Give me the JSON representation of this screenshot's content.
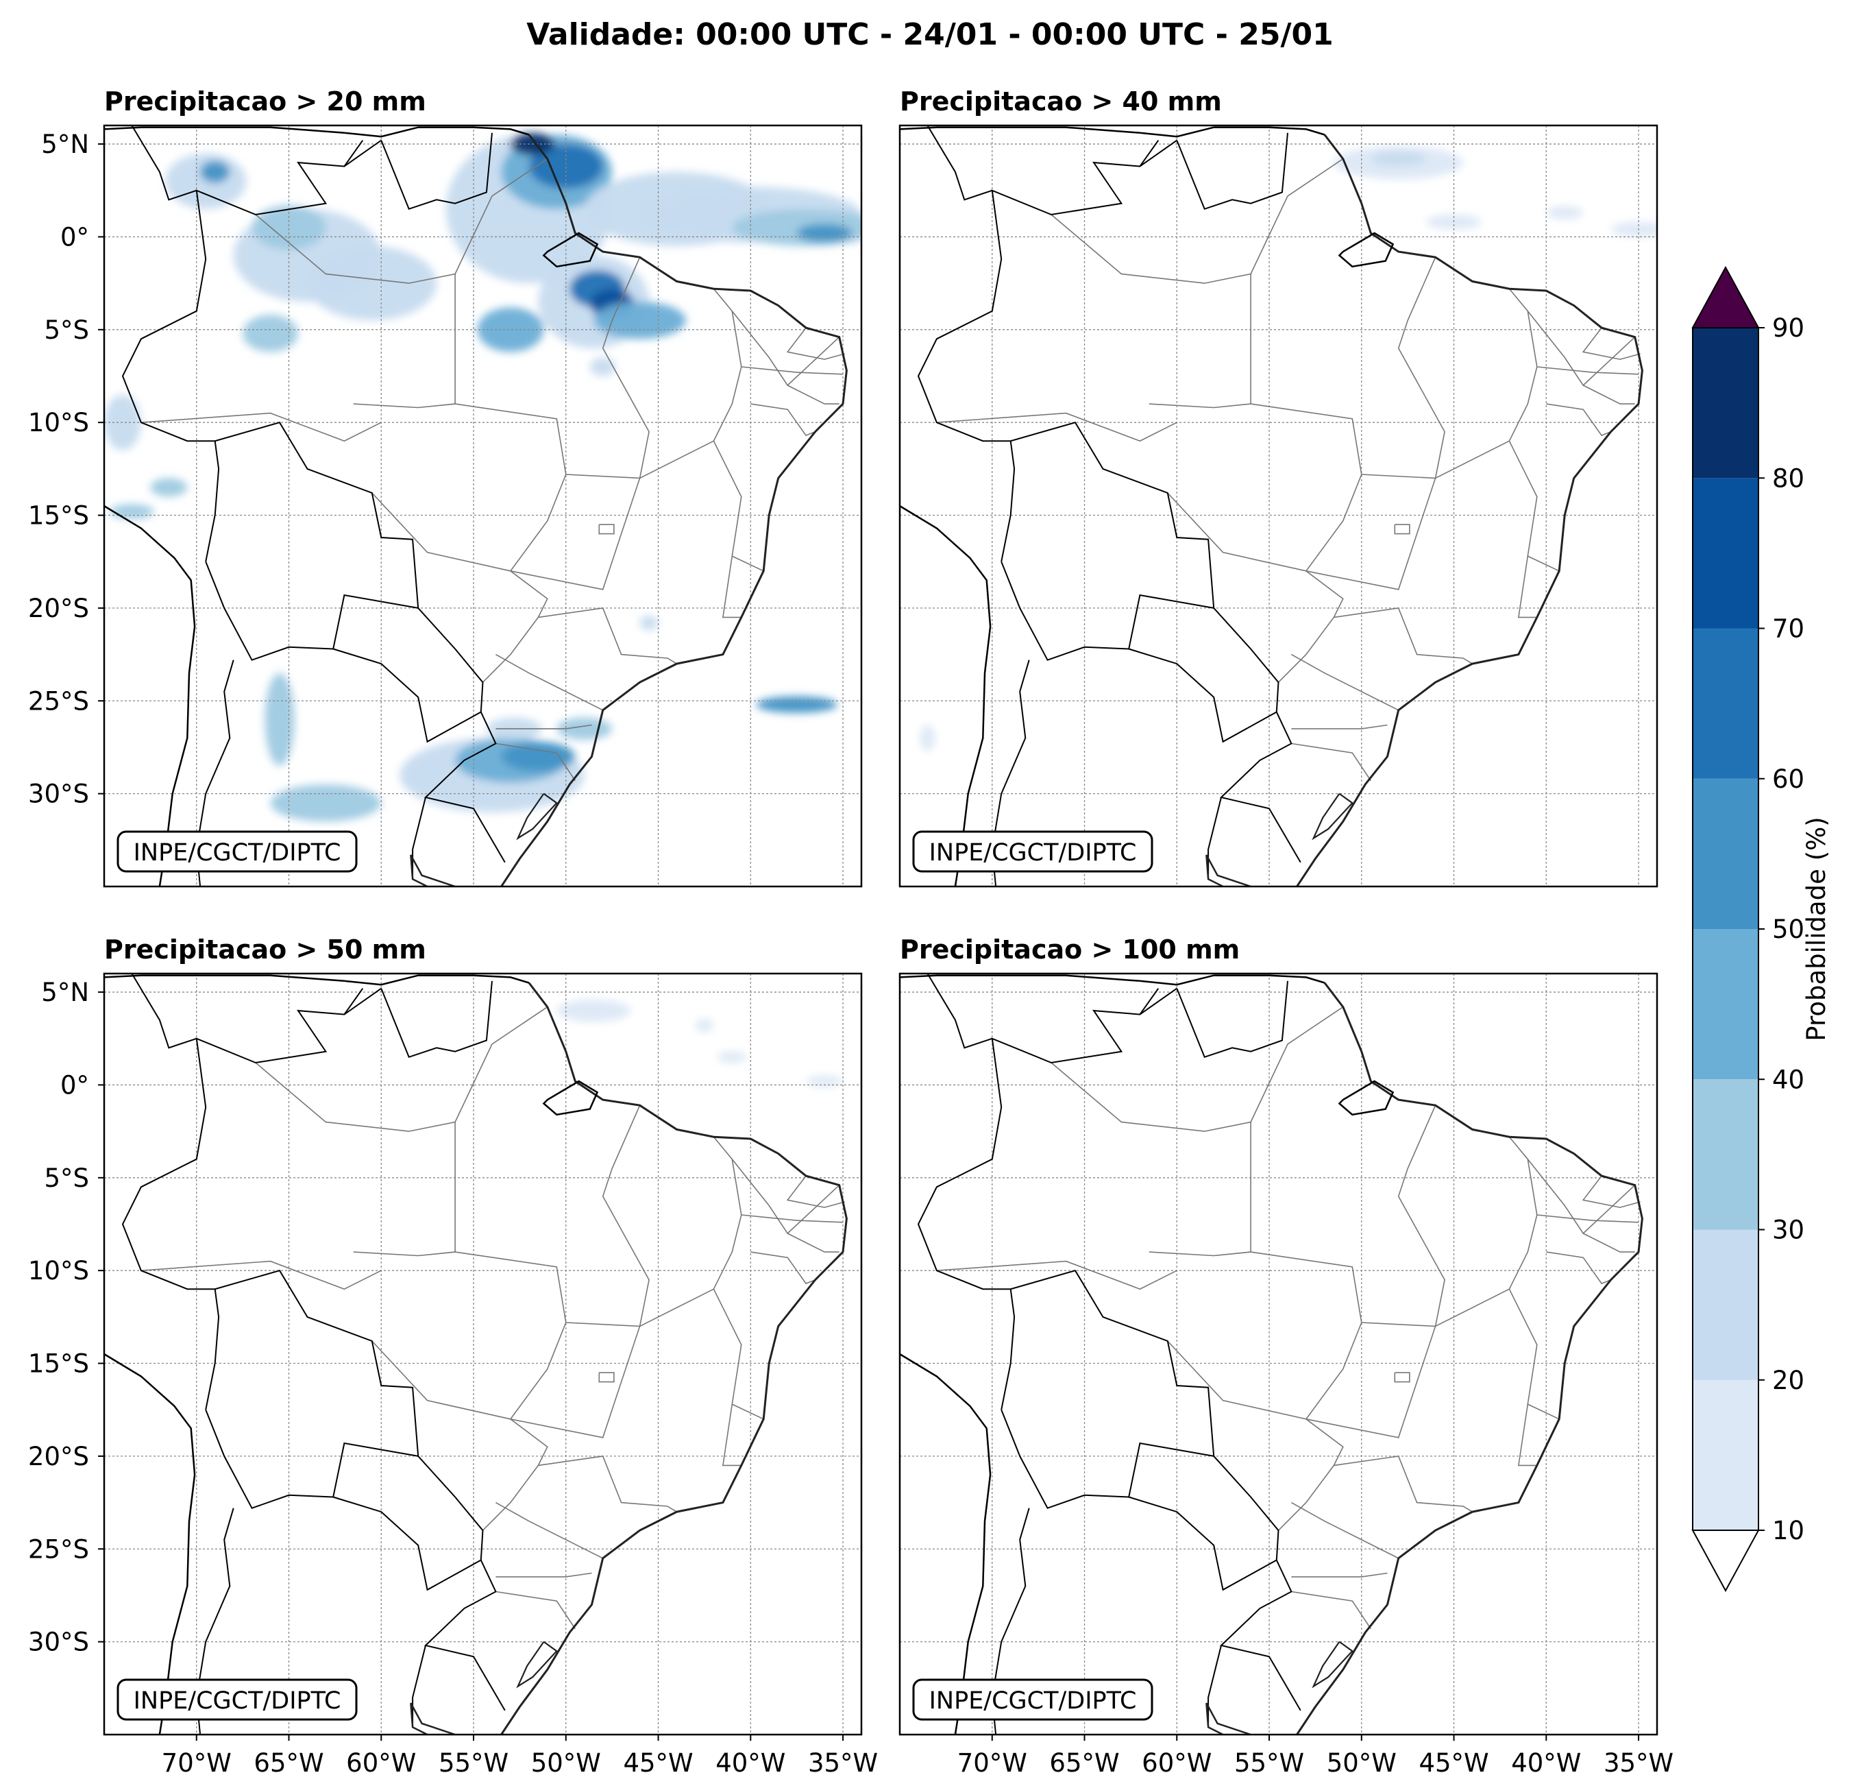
{
  "title": "Validade: 00:00 UTC - 24/01 - 00:00 UTC - 25/01",
  "panels": [
    {
      "title": "Precipitacao > 20 mm",
      "threshold_mm": 20,
      "credit": "INPE/CGCT/DIPTC"
    },
    {
      "title": "Precipitacao > 40 mm",
      "threshold_mm": 40,
      "credit": "INPE/CGCT/DIPTC"
    },
    {
      "title": "Precipitacao > 50 mm",
      "threshold_mm": 50,
      "credit": "INPE/CGCT/DIPTC"
    },
    {
      "title": "Precipitacao > 100 mm",
      "threshold_mm": 100,
      "credit": "INPE/CGCT/DIPTC"
    }
  ],
  "axes": {
    "lat_labels": [
      "5°N",
      "0°",
      "5°S",
      "10°S",
      "15°S",
      "20°S",
      "25°S",
      "30°S"
    ],
    "lon_labels": [
      "70°W",
      "65°W",
      "60°W",
      "55°W",
      "50°W",
      "45°W",
      "40°W",
      "35°W"
    ]
  },
  "colorbar": {
    "label": "Probabilidade (%)",
    "ticks": [
      "10",
      "20",
      "30",
      "40",
      "50",
      "60",
      "70",
      "80",
      "90"
    ],
    "colors": [
      "#dce8f5",
      "#c6dbef",
      "#9ecae1",
      "#6baed6",
      "#4292c6",
      "#2171b5",
      "#08519c",
      "#08306b"
    ],
    "under_color": "#ffffff",
    "over_color": "#4a0044"
  },
  "chart_data": {
    "type": "heatmap",
    "title": "Validade: 00:00 UTC - 24/01 - 00:00 UTC - 25/01",
    "variable": "Probabilidade (%)",
    "lon_range": [
      -75,
      -34
    ],
    "lat_range": [
      -35,
      6
    ],
    "panels": [
      {
        "threshold_mm": 20,
        "max_probability_pct": 90,
        "regions": [
          "Amapá / Pará coast",
          "Equatorial Atlantic near equator",
          "Northern Amazonas",
          "Southern Brazil / Uruguay border",
          "Atlantic near 25°S"
        ]
      },
      {
        "threshold_mm": 40,
        "max_probability_pct": 20,
        "regions": [
          "Atlantic off Amapá",
          "Equatorial Atlantic"
        ]
      },
      {
        "threshold_mm": 50,
        "max_probability_pct": 20,
        "regions": [
          "Atlantic off Amapá"
        ]
      },
      {
        "threshold_mm": 100,
        "max_probability_pct": 10,
        "regions": []
      }
    ]
  }
}
